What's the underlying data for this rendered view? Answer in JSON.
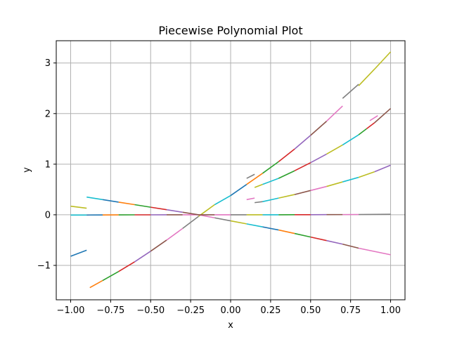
{
  "chart_data": {
    "type": "line",
    "title": "Piecewise Polynomial Plot",
    "xlabel": "x",
    "ylabel": "y",
    "xlim": [
      -1.09,
      1.09
    ],
    "ylim": [
      -1.68,
      3.44
    ],
    "grid": true,
    "xticks": [
      -1.0,
      -0.75,
      -0.5,
      -0.25,
      0.0,
      0.25,
      0.5,
      0.75,
      1.0
    ],
    "xtick_labels": [
      "−1.00",
      "−0.75",
      "−0.50",
      "−0.25",
      "0.00",
      "0.25",
      "0.50",
      "0.75",
      "1.00"
    ],
    "yticks": [
      -1,
      0,
      1,
      2,
      3
    ],
    "ytick_labels": [
      "−1",
      "0",
      "1",
      "2",
      "3"
    ],
    "colors": [
      "#1f77b4",
      "#ff7f0e",
      "#2ca02c",
      "#d62728",
      "#9467bd",
      "#8c564b",
      "#e377c2",
      "#7f7f7f",
      "#bcbd22",
      "#17becf"
    ],
    "series": [
      {
        "points": [
          [
            -1.0,
            -0.82
          ],
          [
            -0.9,
            -0.7
          ]
        ],
        "color": "#1f77b4"
      },
      {
        "points": [
          [
            -1.0,
            0.17
          ],
          [
            -0.9,
            0.13
          ]
        ],
        "color": "#bcbd22"
      },
      {
        "points": [
          [
            -1.0,
            -0.005
          ],
          [
            -0.9,
            -0.005
          ]
        ],
        "color": "#17becf"
      },
      {
        "points": [
          [
            -0.9,
            -0.005
          ],
          [
            -0.8,
            -0.003
          ]
        ],
        "color": "#1f77b4"
      },
      {
        "points": [
          [
            -0.8,
            -0.003
          ],
          [
            -0.7,
            -0.002
          ]
        ],
        "color": "#ff7f0e"
      },
      {
        "points": [
          [
            -0.7,
            -0.002
          ],
          [
            -0.6,
            -0.001
          ]
        ],
        "color": "#2ca02c"
      },
      {
        "points": [
          [
            -0.6,
            -0.001
          ],
          [
            -0.5,
            -0.001
          ]
        ],
        "color": "#d62728"
      },
      {
        "points": [
          [
            -0.5,
            -0.001
          ],
          [
            -0.4,
            0.0
          ]
        ],
        "color": "#9467bd"
      },
      {
        "points": [
          [
            -0.4,
            0.0
          ],
          [
            -0.3,
            0.0
          ]
        ],
        "color": "#8c564b"
      },
      {
        "points": [
          [
            -0.3,
            0.0
          ],
          [
            -0.2,
            0.0
          ]
        ],
        "color": "#e377c2"
      },
      {
        "points": [
          [
            -0.9,
            0.35
          ],
          [
            -0.8,
            0.3
          ]
        ],
        "color": "#17becf"
      },
      {
        "points": [
          [
            -0.8,
            0.3
          ],
          [
            -0.7,
            0.25
          ]
        ],
        "color": "#1f77b4"
      },
      {
        "points": [
          [
            -0.7,
            0.25
          ],
          [
            -0.6,
            0.2
          ]
        ],
        "color": "#ff7f0e"
      },
      {
        "points": [
          [
            -0.6,
            0.2
          ],
          [
            -0.5,
            0.15
          ]
        ],
        "color": "#2ca02c"
      },
      {
        "points": [
          [
            -0.5,
            0.15
          ],
          [
            -0.4,
            0.1
          ]
        ],
        "color": "#d62728"
      },
      {
        "points": [
          [
            -0.4,
            0.1
          ],
          [
            -0.3,
            0.05
          ]
        ],
        "color": "#9467bd"
      },
      {
        "points": [
          [
            -0.3,
            0.05
          ],
          [
            -0.2,
            0.0
          ]
        ],
        "color": "#8c564b"
      },
      {
        "points": [
          [
            -0.88,
            -1.44
          ],
          [
            -0.8,
            -1.3
          ]
        ],
        "color": "#ff7f0e"
      },
      {
        "points": [
          [
            -0.8,
            -1.3
          ],
          [
            -0.7,
            -1.12
          ]
        ],
        "color": "#2ca02c"
      },
      {
        "points": [
          [
            -0.7,
            -1.12
          ],
          [
            -0.6,
            -0.93
          ]
        ],
        "color": "#d62728"
      },
      {
        "points": [
          [
            -0.6,
            -0.93
          ],
          [
            -0.5,
            -0.72
          ]
        ],
        "color": "#9467bd"
      },
      {
        "points": [
          [
            -0.5,
            -0.72
          ],
          [
            -0.4,
            -0.5
          ]
        ],
        "color": "#8c564b"
      },
      {
        "points": [
          [
            -0.4,
            -0.5
          ],
          [
            -0.3,
            -0.27
          ]
        ],
        "color": "#e377c2"
      },
      {
        "points": [
          [
            -0.3,
            -0.27
          ],
          [
            -0.2,
            -0.03
          ]
        ],
        "color": "#7f7f7f"
      },
      {
        "points": [
          [
            -0.2,
            -0.03
          ],
          [
            -0.1,
            0.2
          ]
        ],
        "color": "#bcbd22"
      },
      {
        "points": [
          [
            -0.1,
            0.2
          ],
          [
            0.0,
            0.38
          ]
        ],
        "color": "#17becf"
      },
      {
        "points": [
          [
            0.0,
            0.38
          ],
          [
            0.1,
            0.6
          ]
        ],
        "color": "#1f77b4"
      },
      {
        "points": [
          [
            0.1,
            0.6
          ],
          [
            0.2,
            0.82
          ]
        ],
        "color": "#ff7f0e"
      },
      {
        "points": [
          [
            0.2,
            0.82
          ],
          [
            0.3,
            1.05
          ]
        ],
        "color": "#2ca02c"
      },
      {
        "points": [
          [
            0.3,
            1.05
          ],
          [
            0.4,
            1.3
          ]
        ],
        "color": "#d62728"
      },
      {
        "points": [
          [
            0.4,
            1.3
          ],
          [
            0.5,
            1.57
          ]
        ],
        "color": "#9467bd"
      },
      {
        "points": [
          [
            0.5,
            1.57
          ],
          [
            0.6,
            1.85
          ]
        ],
        "color": "#8c564b"
      },
      {
        "points": [
          [
            0.6,
            1.85
          ],
          [
            0.7,
            2.15
          ]
        ],
        "color": "#e377c2"
      },
      {
        "points": [
          [
            0.7,
            2.3
          ],
          [
            0.8,
            2.58
          ]
        ],
        "color": "#7f7f7f"
      },
      {
        "points": [
          [
            0.8,
            2.55
          ],
          [
            0.9,
            2.88
          ]
        ],
        "color": "#bcbd22"
      },
      {
        "points": [
          [
            0.9,
            2.88
          ],
          [
            1.0,
            3.22
          ]
        ],
        "color": "#bcbd22"
      },
      {
        "points": [
          [
            -0.2,
            0.0
          ],
          [
            -0.1,
            -0.06
          ]
        ],
        "color": "#e377c2"
      },
      {
        "points": [
          [
            -0.1,
            -0.06
          ],
          [
            0.0,
            -0.12
          ]
        ],
        "color": "#7f7f7f"
      },
      {
        "points": [
          [
            0.0,
            -0.12
          ],
          [
            0.1,
            -0.18
          ]
        ],
        "color": "#bcbd22"
      },
      {
        "points": [
          [
            0.1,
            -0.18
          ],
          [
            0.2,
            -0.24
          ]
        ],
        "color": "#17becf"
      },
      {
        "points": [
          [
            0.2,
            -0.24
          ],
          [
            0.3,
            -0.3
          ]
        ],
        "color": "#1f77b4"
      },
      {
        "points": [
          [
            0.3,
            -0.3
          ],
          [
            0.4,
            -0.37
          ]
        ],
        "color": "#ff7f0e"
      },
      {
        "points": [
          [
            0.4,
            -0.37
          ],
          [
            0.5,
            -0.44
          ]
        ],
        "color": "#2ca02c"
      },
      {
        "points": [
          [
            0.5,
            -0.44
          ],
          [
            0.6,
            -0.51
          ]
        ],
        "color": "#d62728"
      },
      {
        "points": [
          [
            0.6,
            -0.51
          ],
          [
            0.7,
            -0.58
          ]
        ],
        "color": "#9467bd"
      },
      {
        "points": [
          [
            0.7,
            -0.58
          ],
          [
            0.8,
            -0.66
          ]
        ],
        "color": "#8c564b"
      },
      {
        "points": [
          [
            0.8,
            -0.66
          ],
          [
            1.0,
            -0.79
          ]
        ],
        "color": "#e377c2"
      },
      {
        "points": [
          [
            -0.2,
            0.0
          ],
          [
            -0.1,
            0.0
          ]
        ],
        "color": "#8c564b"
      },
      {
        "points": [
          [
            -0.1,
            0.0
          ],
          [
            0.0,
            0.0
          ]
        ],
        "color": "#e377c2"
      },
      {
        "points": [
          [
            0.0,
            0.0
          ],
          [
            0.1,
            0.0
          ]
        ],
        "color": "#7f7f7f"
      },
      {
        "points": [
          [
            0.1,
            0.0
          ],
          [
            0.2,
            0.0
          ]
        ],
        "color": "#bcbd22"
      },
      {
        "points": [
          [
            0.2,
            0.0
          ],
          [
            0.3,
            0.0
          ]
        ],
        "color": "#17becf"
      },
      {
        "points": [
          [
            0.3,
            0.0
          ],
          [
            0.4,
            0.001
          ]
        ],
        "color": "#2ca02c"
      },
      {
        "points": [
          [
            0.4,
            0.001
          ],
          [
            0.5,
            0.002
          ]
        ],
        "color": "#d62728"
      },
      {
        "points": [
          [
            0.5,
            0.002
          ],
          [
            0.6,
            0.003
          ]
        ],
        "color": "#9467bd"
      },
      {
        "points": [
          [
            0.6,
            0.003
          ],
          [
            0.7,
            0.004
          ]
        ],
        "color": "#8c564b"
      },
      {
        "points": [
          [
            0.7,
            0.004
          ],
          [
            0.8,
            0.006
          ]
        ],
        "color": "#e377c2"
      },
      {
        "points": [
          [
            0.8,
            0.006
          ],
          [
            1.0,
            0.01
          ]
        ],
        "color": "#7f7f7f"
      },
      {
        "points": [
          [
            0.1,
            0.72
          ],
          [
            0.15,
            0.8
          ]
        ],
        "color": "#7f7f7f"
      },
      {
        "points": [
          [
            0.15,
            0.54
          ],
          [
            0.2,
            0.6
          ]
        ],
        "color": "#bcbd22"
      },
      {
        "points": [
          [
            0.2,
            0.6
          ],
          [
            0.3,
            0.72
          ]
        ],
        "color": "#17becf"
      },
      {
        "points": [
          [
            0.3,
            0.72
          ],
          [
            0.4,
            0.87
          ]
        ],
        "color": "#2ca02c"
      },
      {
        "points": [
          [
            0.4,
            0.87
          ],
          [
            0.5,
            1.03
          ]
        ],
        "color": "#d62728"
      },
      {
        "points": [
          [
            0.5,
            1.03
          ],
          [
            0.6,
            1.2
          ]
        ],
        "color": "#9467bd"
      },
      {
        "points": [
          [
            0.6,
            1.2
          ],
          [
            0.7,
            1.38
          ]
        ],
        "color": "#bcbd22"
      },
      {
        "points": [
          [
            0.7,
            1.38
          ],
          [
            0.8,
            1.58
          ]
        ],
        "color": "#17becf"
      },
      {
        "points": [
          [
            0.8,
            1.58
          ],
          [
            0.85,
            1.7
          ]
        ],
        "color": "#2ca02c"
      },
      {
        "points": [
          [
            0.85,
            1.7
          ],
          [
            0.9,
            1.82
          ]
        ],
        "color": "#d62728"
      },
      {
        "points": [
          [
            0.9,
            1.82
          ],
          [
            1.0,
            2.1
          ]
        ],
        "color": "#8c564b"
      },
      {
        "points": [
          [
            0.87,
            1.86
          ],
          [
            0.92,
            1.96
          ]
        ],
        "color": "#e377c2"
      },
      {
        "points": [
          [
            0.1,
            0.3
          ],
          [
            0.15,
            0.33
          ]
        ],
        "color": "#e377c2"
      },
      {
        "points": [
          [
            0.15,
            0.24
          ],
          [
            0.2,
            0.26
          ]
        ],
        "color": "#7f7f7f"
      },
      {
        "points": [
          [
            0.2,
            0.26
          ],
          [
            0.3,
            0.33
          ]
        ],
        "color": "#17becf"
      },
      {
        "points": [
          [
            0.3,
            0.33
          ],
          [
            0.4,
            0.4
          ]
        ],
        "color": "#bcbd22"
      },
      {
        "points": [
          [
            0.4,
            0.4
          ],
          [
            0.5,
            0.48
          ]
        ],
        "color": "#8c564b"
      },
      {
        "points": [
          [
            0.5,
            0.48
          ],
          [
            0.6,
            0.56
          ]
        ],
        "color": "#e377c2"
      },
      {
        "points": [
          [
            0.6,
            0.56
          ],
          [
            0.7,
            0.65
          ]
        ],
        "color": "#bcbd22"
      },
      {
        "points": [
          [
            0.7,
            0.65
          ],
          [
            0.8,
            0.74
          ]
        ],
        "color": "#17becf"
      },
      {
        "points": [
          [
            0.8,
            0.74
          ],
          [
            0.9,
            0.85
          ]
        ],
        "color": "#bcbd22"
      },
      {
        "points": [
          [
            0.9,
            0.85
          ],
          [
            1.0,
            0.98
          ]
        ],
        "color": "#9467bd"
      }
    ]
  }
}
